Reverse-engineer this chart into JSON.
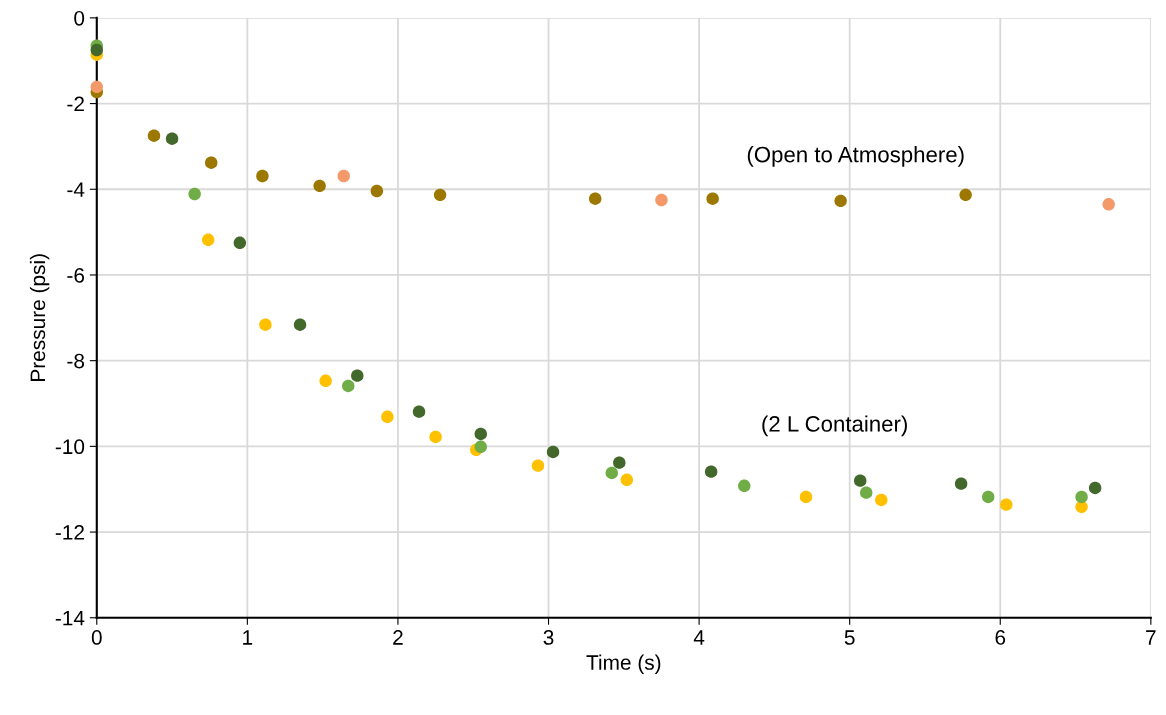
{
  "chart_data": {
    "type": "scatter",
    "xlabel": "Time (s)",
    "ylabel": "Pressure (psi)",
    "xlim": [
      0,
      7
    ],
    "xticks": [
      0,
      1,
      2,
      3,
      4,
      5,
      6,
      7
    ],
    "ylim": [
      -14,
      0
    ],
    "yticks": [
      -14,
      -12,
      -10,
      -8,
      -6,
      -4,
      -2,
      0
    ],
    "grid": true,
    "legend": false,
    "marker": "circle",
    "annotations": [
      "(Open to Atmosphere)",
      "(2 L Container)"
    ],
    "series": [
      {
        "color": "#9c7800",
        "x": [
          0,
          0.38,
          0.76,
          1.1,
          1.48,
          1.86,
          2.28,
          3.31,
          4.09,
          4.94,
          5.77
        ],
        "values": [
          -1.73,
          -2.75,
          -3.38,
          -3.69,
          -3.92,
          -4.04,
          -4.13,
          -4.22,
          -4.22,
          -4.27,
          -4.13
        ]
      },
      {
        "color": "#f4996a",
        "x": [
          0,
          1.64,
          3.75,
          6.72
        ],
        "values": [
          -1.61,
          -3.69,
          -4.25,
          -4.35
        ]
      },
      {
        "color": "#ffc000",
        "x": [
          0,
          0.74,
          1.12,
          1.52,
          1.93,
          2.25,
          2.52,
          2.93,
          3.52,
          4.71,
          5.21,
          6.04,
          6.54
        ],
        "values": [
          -0.86,
          -5.18,
          -7.16,
          -8.47,
          -9.31,
          -9.78,
          -10.08,
          -10.45,
          -10.78,
          -11.18,
          -11.25,
          -11.36,
          -11.41
        ]
      },
      {
        "color": "#70ad47",
        "x": [
          0,
          0.65,
          1.67,
          2.55,
          3.42,
          4.3,
          5.11,
          5.92,
          6.54
        ],
        "values": [
          -0.65,
          -4.11,
          -8.59,
          -10.01,
          -10.62,
          -10.92,
          -11.08,
          -11.18,
          -11.18
        ]
      },
      {
        "color": "#43682b",
        "x": [
          0,
          0.5,
          0.95,
          1.35,
          1.73,
          2.14,
          2.55,
          3.03,
          3.47,
          4.08,
          5.07,
          5.74,
          6.63
        ],
        "values": [
          -0.75,
          -2.82,
          -5.25,
          -7.16,
          -8.35,
          -9.19,
          -9.71,
          -10.13,
          -10.38,
          -10.59,
          -10.8,
          -10.87,
          -10.97
        ]
      }
    ]
  }
}
